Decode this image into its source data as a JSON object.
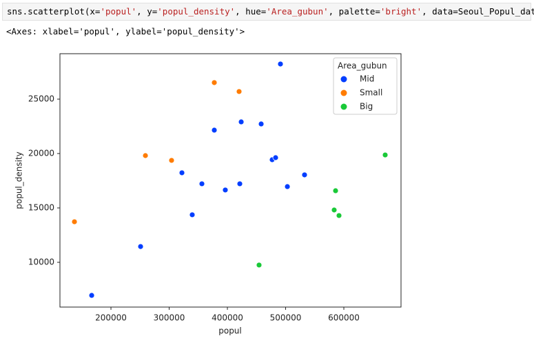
{
  "code": {
    "tokens": [
      {
        "text": "sns.scatterplot(x=",
        "color": "#000000"
      },
      {
        "text": "'popul'",
        "color": "#ba2121"
      },
      {
        "text": ", y=",
        "color": "#000000"
      },
      {
        "text": "'popul_density'",
        "color": "#ba2121"
      },
      {
        "text": ", hue=",
        "color": "#000000"
      },
      {
        "text": "'Area_gubun'",
        "color": "#ba2121"
      },
      {
        "text": ", palette=",
        "color": "#000000"
      },
      {
        "text": "'bright'",
        "color": "#ba2121"
      },
      {
        "text": ", data=Seoul_Popul_data)",
        "color": "#000000"
      }
    ]
  },
  "output_text": "<Axes: xlabel='popul', ylabel='popul_density'>",
  "chart_data": {
    "type": "scatter",
    "xlabel": "popul",
    "ylabel": "popul_density",
    "legend_title": "Area_gubun",
    "legend": "upper right",
    "xlim": [
      112400,
      698200
    ],
    "ylim": [
      5886,
      29177
    ],
    "xticks": [
      200000,
      300000,
      400000,
      500000,
      600000
    ],
    "yticks": [
      10000,
      15000,
      20000,
      25000
    ],
    "series": [
      {
        "name": "Mid",
        "color": "#023eff",
        "x": [
          166900,
          250900,
          321900,
          339600,
          356200,
          377500,
          396400,
          421300,
          423700,
          458000,
          476900,
          482800,
          491100,
          503000,
          532500
        ],
        "values": [
          6960,
          11450,
          18230,
          14370,
          17220,
          22150,
          16650,
          17220,
          22910,
          22720,
          19430,
          19620,
          28230,
          16960,
          18040
        ]
      },
      {
        "name": "Small",
        "color": "#ff7c00",
        "x": [
          137300,
          259200,
          304100,
          377500,
          420100
        ],
        "values": [
          13730,
          19810,
          19370,
          26520,
          25700
        ]
      },
      {
        "name": "Big",
        "color": "#1ac938",
        "x": [
          454400,
          583400,
          585800,
          591700,
          671000
        ],
        "values": [
          9750,
          14810,
          16580,
          14300,
          19870
        ]
      }
    ]
  }
}
